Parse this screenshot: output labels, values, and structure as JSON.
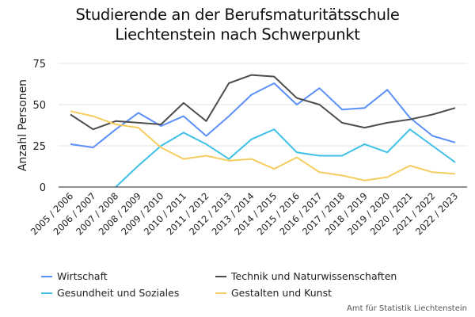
{
  "chart_data": {
    "type": "line",
    "title": "Studierende an der Berufsmaturitätsschule Liechtenstein nach Schwerpunkt",
    "title_lines": [
      "Studierende an der Berufsmaturitätsschule",
      "Liechtenstein nach Schwerpunkt"
    ],
    "xlabel": "",
    "ylabel": "Anzahl Personen",
    "ylim": [
      0,
      75
    ],
    "yticks": [
      0,
      25,
      50,
      75
    ],
    "grid": true,
    "legend_position": "bottom",
    "categories": [
      "2005 / 2006",
      "2006 / 2007",
      "2007 / 2008",
      "2008 / 2009",
      "2009 / 2010",
      "2010 / 2011",
      "2011 / 2012",
      "2012 / 2013",
      "2013 / 2014",
      "2014 / 2015",
      "2015 / 2016",
      "2016 / 2017",
      "2017 / 2018",
      "2018 / 2019",
      "2019 / 2020",
      "2020 / 2021",
      "2021 / 2022",
      "2022 / 2023"
    ],
    "series": [
      {
        "name": "Wirtschaft",
        "color": "#5b8ff9",
        "values": [
          26,
          24,
          35,
          45,
          37,
          43,
          31,
          43,
          56,
          63,
          50,
          60,
          47,
          48,
          59,
          42,
          31,
          27
        ]
      },
      {
        "name": "Technik und Naturwissenschaften",
        "color": "#4d4d4d",
        "values": [
          44,
          35,
          40,
          39,
          38,
          51,
          40,
          63,
          68,
          67,
          54,
          50,
          39,
          36,
          39,
          41,
          44,
          48
        ]
      },
      {
        "name": "Gesundheit und Soziales",
        "color": "#3ec0e8",
        "values": [
          null,
          null,
          0,
          13,
          25,
          33,
          26,
          17,
          29,
          35,
          21,
          19,
          19,
          26,
          21,
          35,
          25,
          15
        ]
      },
      {
        "name": "Gestalten und Kunst",
        "color": "#f5cc5f",
        "values": [
          46,
          43,
          38,
          36,
          24,
          17,
          19,
          16,
          17,
          11,
          18,
          9,
          7,
          4,
          6,
          13,
          9,
          8
        ]
      }
    ],
    "source": "Amt für Statistik Liechtenstein"
  }
}
